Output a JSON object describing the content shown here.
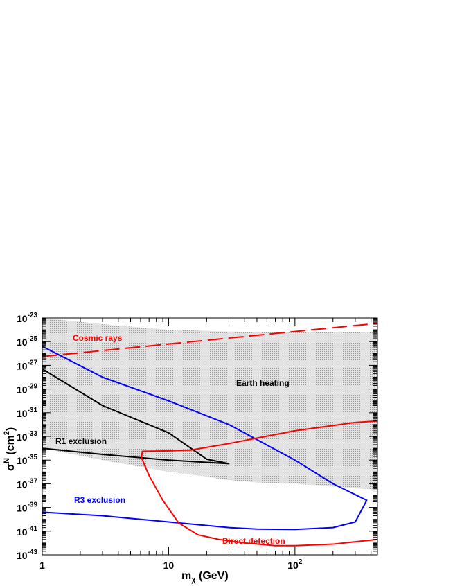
{
  "chart_data": {
    "type": "line",
    "title": "",
    "xlabel": {
      "base": "m",
      "sub": "χ",
      "rest": " (GeV)"
    },
    "ylabel": {
      "base": "σ",
      "sup": "N",
      "rest1": " (cm",
      "sup2": "2",
      "rest2": ")"
    },
    "xscale": "log",
    "yscale": "log",
    "xlim": [
      1,
      450
    ],
    "ylim": [
      1e-43,
      1e-23
    ],
    "grid": false,
    "x_ticks": [
      {
        "value": 1,
        "label": "1"
      },
      {
        "value": 10,
        "label": "10"
      },
      {
        "value": 100,
        "label": "10",
        "sup": "2"
      }
    ],
    "y_ticks": [
      {
        "value": 1e-23,
        "base": "10",
        "sup": "-23"
      },
      {
        "value": 1e-25,
        "base": "10",
        "sup": "-25"
      },
      {
        "value": 1e-27,
        "base": "10",
        "sup": "-27"
      },
      {
        "value": 1e-29,
        "base": "10",
        "sup": "-29"
      },
      {
        "value": 1e-31,
        "base": "10",
        "sup": "-31"
      },
      {
        "value": 1e-33,
        "base": "10",
        "sup": "-33"
      },
      {
        "value": 1e-35,
        "base": "10",
        "sup": "-35"
      },
      {
        "value": 1e-37,
        "base": "10",
        "sup": "-37"
      },
      {
        "value": 1e-39,
        "base": "10",
        "sup": "-39"
      },
      {
        "value": 1e-41,
        "base": "10",
        "sup": "-41"
      },
      {
        "value": 1e-43,
        "base": "10",
        "sup": "-43"
      }
    ],
    "series": [
      {
        "key": "earth_heating",
        "style": "shaded",
        "color": "#cfcfcf",
        "upper": [
          [
            1,
            1e-23
          ],
          [
            3,
            3e-24
          ],
          [
            10,
            1e-24
          ],
          [
            30,
            7e-25
          ],
          [
            100,
            6e-25
          ],
          [
            450,
            6e-25
          ]
        ],
        "lower": [
          [
            1,
            1e-34
          ],
          [
            3,
            1e-35
          ],
          [
            10,
            1e-36
          ],
          [
            20,
            4e-37
          ],
          [
            30,
            2e-37
          ],
          [
            50,
            1.3e-37
          ],
          [
            100,
            1e-37
          ],
          [
            200,
            6e-38
          ],
          [
            450,
            3e-38
          ]
        ]
      },
      {
        "key": "cosmic_rays",
        "style": "dashed",
        "color": "#ff0000",
        "points": [
          [
            1,
            5.5e-27
          ],
          [
            450,
            3.5e-24
          ]
        ]
      },
      {
        "key": "r1_exclusion",
        "style": "solid",
        "color": "#000000",
        "points": [
          [
            1,
            5e-28
          ],
          [
            3,
            4e-31
          ],
          [
            10,
            2e-33
          ],
          [
            20,
            1.2e-35
          ],
          [
            30,
            5e-36
          ],
          [
            10,
            1e-35
          ],
          [
            3,
            3e-35
          ],
          [
            1,
            1e-34
          ],
          [
            1,
            5e-28
          ]
        ]
      },
      {
        "key": "r3_exclusion",
        "style": "solid",
        "color": "#0000ff",
        "points": [
          [
            1,
            4e-26
          ],
          [
            3,
            1e-28
          ],
          [
            10,
            1e-30
          ],
          [
            30,
            1e-32
          ],
          [
            100,
            1e-35
          ],
          [
            200,
            1e-37
          ],
          [
            370,
            4e-39
          ],
          [
            300,
            6e-41
          ],
          [
            200,
            2e-41
          ],
          [
            100,
            1.4e-41
          ],
          [
            50,
            1.5e-41
          ],
          [
            30,
            2e-41
          ],
          [
            20,
            3e-41
          ],
          [
            10,
            6e-41
          ],
          [
            5,
            1.2e-40
          ],
          [
            3,
            2e-40
          ],
          [
            1,
            4e-40
          ]
        ]
      },
      {
        "key": "direct_detection",
        "style": "solid",
        "color": "#ff0000",
        "points": [
          [
            450,
            2e-32
          ],
          [
            300,
            1.5e-32
          ],
          [
            100,
            3e-33
          ],
          [
            30,
            2.5e-34
          ],
          [
            15,
            7e-35
          ],
          [
            10,
            6e-35
          ],
          [
            6.2,
            5.5e-35
          ],
          [
            6.1,
            1.6e-35
          ],
          [
            7,
            5e-37
          ],
          [
            9,
            4e-39
          ],
          [
            12,
            5e-41
          ],
          [
            17,
            5e-42
          ],
          [
            25,
            2e-42
          ],
          [
            40,
            1e-42
          ],
          [
            70,
            6e-43
          ],
          [
            100,
            6e-43
          ],
          [
            200,
            8e-43
          ],
          [
            450,
            2e-42
          ]
        ]
      }
    ],
    "annotations": [
      {
        "text": "Cosmic rays",
        "color": "#ff0000"
      },
      {
        "text": "Earth heating",
        "color": "#000000"
      },
      {
        "text": "R1 exclusion",
        "color": "#000000"
      },
      {
        "text": "R3 exclusion",
        "color": "#0000ff"
      },
      {
        "text": "Direct detection",
        "color": "#ff0000"
      }
    ]
  }
}
